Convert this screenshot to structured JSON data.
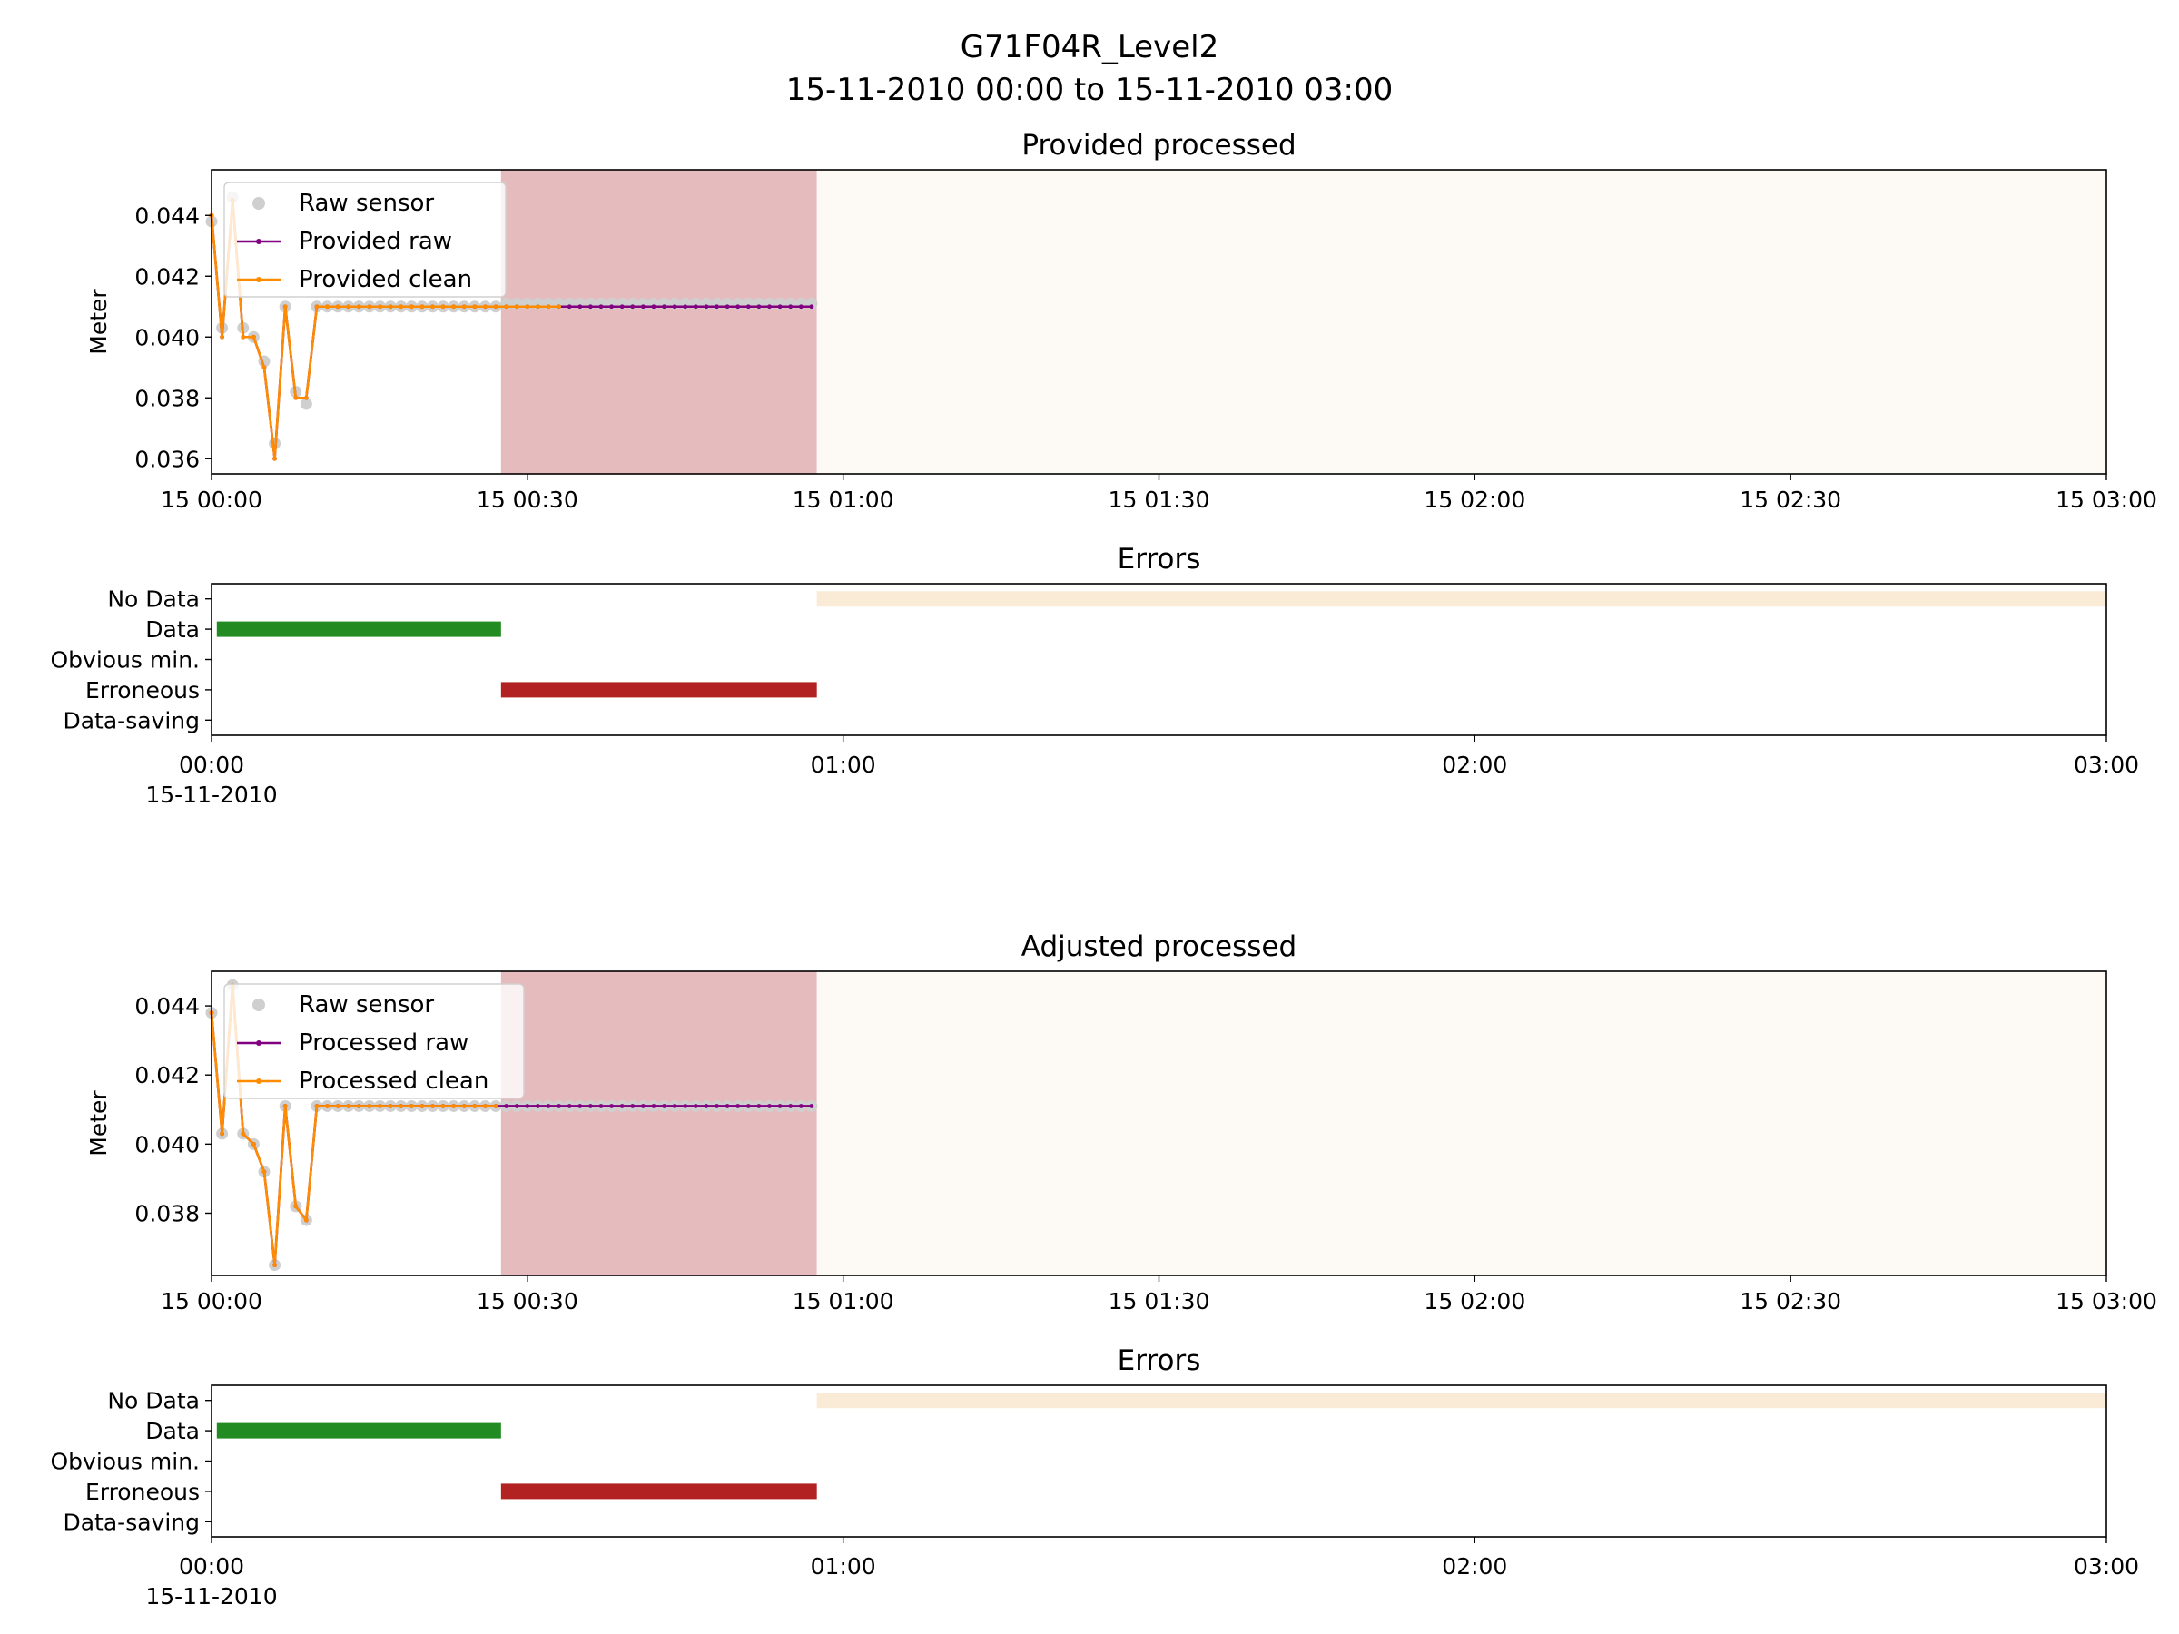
{
  "figure": {
    "title": "G71F04R_Level2",
    "subtitle": "15-11-2010 00:00 to 15-11-2010 03:00"
  },
  "colors": {
    "raw_sensor": "#cfcfcf",
    "raw_line": "#800080",
    "clean_line": "#ff8c00",
    "erroneous_span": "#e6bbbd",
    "nodata_span": "#fdf9f4",
    "data_bar": "#228b22",
    "erroneous_bar": "#b22222",
    "nodata_bar": "#faebd7"
  },
  "chart_data": [
    {
      "type": "line",
      "title": "Provided processed",
      "ylabel": "Meter",
      "xlim": [
        "2010-11-15 00:00",
        "2010-11-15 03:00"
      ],
      "ylim": [
        0.0355,
        0.0455
      ],
      "yticks": [
        "0.036",
        "0.038",
        "0.040",
        "0.042",
        "0.044"
      ],
      "xticks": [
        "15 00:00",
        "15 00:30",
        "15 01:00",
        "15 01:30",
        "15 02:00",
        "15 02:30",
        "15 03:00"
      ],
      "legend": {
        "position": "upper-left",
        "entries": [
          "Raw sensor",
          "Provided raw",
          "Provided clean"
        ]
      },
      "shaded_spans": [
        {
          "kind": "erroneous",
          "from": "2010-11-15 00:27:30",
          "to": "2010-11-15 00:57:30"
        },
        {
          "kind": "no_data",
          "from": "2010-11-15 00:57:30",
          "to": "2010-11-15 03:00"
        }
      ],
      "series": [
        {
          "name": "Raw sensor",
          "style": "points",
          "x": [
            "00:00",
            "00:01",
            "00:02",
            "00:03",
            "00:04",
            "00:05",
            "00:06",
            "00:07",
            "00:08",
            "00:09",
            "00:10",
            "00:11",
            "00:12",
            "00:13",
            "00:14",
            "00:15",
            "00:16",
            "00:17",
            "00:18",
            "00:19",
            "00:20",
            "00:21",
            "00:22",
            "00:23",
            "00:24",
            "00:25",
            "00:26",
            "00:27",
            "00:28",
            "00:29",
            "00:30",
            "00:31",
            "00:32",
            "00:33",
            "00:34",
            "00:35",
            "00:36",
            "00:37",
            "00:38",
            "00:39",
            "00:40",
            "00:41",
            "00:42",
            "00:43",
            "00:44",
            "00:45",
            "00:46",
            "00:47",
            "00:48",
            "00:49",
            "00:50",
            "00:51",
            "00:52",
            "00:53",
            "00:54",
            "00:55",
            "00:56",
            "00:57"
          ],
          "y": [
            0.0438,
            0.0403,
            0.0446,
            0.0403,
            0.04,
            0.0392,
            0.0365,
            0.041,
            0.0382,
            0.0378,
            0.041,
            0.041,
            0.041,
            0.041,
            0.041,
            0.041,
            0.041,
            0.041,
            0.041,
            0.041,
            0.041,
            0.041,
            0.041,
            0.041,
            0.041,
            0.041,
            0.041,
            0.041,
            0.0411,
            0.0411,
            0.0411,
            0.0411,
            0.0411,
            0.0411,
            0.0411,
            0.0411,
            0.0411,
            0.0411,
            0.0411,
            0.0411,
            0.0411,
            0.0411,
            0.0411,
            0.0411,
            0.0411,
            0.0411,
            0.0411,
            0.0411,
            0.0411,
            0.0411,
            0.0411,
            0.0411,
            0.0411,
            0.0411,
            0.0411,
            0.0411,
            0.0411,
            0.0411
          ]
        },
        {
          "name": "Provided raw",
          "style": "line-dots",
          "x": [
            "00:00",
            "00:01",
            "00:02",
            "00:03",
            "00:04",
            "00:05",
            "00:06",
            "00:07",
            "00:08",
            "00:09",
            "00:10",
            "00:11",
            "00:12",
            "00:13",
            "00:14",
            "00:15",
            "00:16",
            "00:17",
            "00:18",
            "00:19",
            "00:20",
            "00:21",
            "00:22",
            "00:23",
            "00:24",
            "00:25",
            "00:26",
            "00:27",
            "00:28",
            "00:29",
            "00:30",
            "00:31",
            "00:32",
            "00:33",
            "00:34",
            "00:35",
            "00:36",
            "00:37",
            "00:38",
            "00:39",
            "00:40",
            "00:41",
            "00:42",
            "00:43",
            "00:44",
            "00:45",
            "00:46",
            "00:47",
            "00:48",
            "00:49",
            "00:50",
            "00:51",
            "00:52",
            "00:53",
            "00:54",
            "00:55",
            "00:56",
            "00:57"
          ],
          "y": [
            0.044,
            0.04,
            0.0445,
            0.04,
            0.04,
            0.039,
            0.036,
            0.041,
            0.038,
            0.038,
            0.041,
            0.041,
            0.041,
            0.041,
            0.041,
            0.041,
            0.041,
            0.041,
            0.041,
            0.041,
            0.041,
            0.041,
            0.041,
            0.041,
            0.041,
            0.041,
            0.041,
            0.041,
            0.041,
            0.041,
            0.041,
            0.041,
            0.041,
            0.041,
            0.041,
            0.041,
            0.041,
            0.041,
            0.041,
            0.041,
            0.041,
            0.041,
            0.041,
            0.041,
            0.041,
            0.041,
            0.041,
            0.041,
            0.041,
            0.041,
            0.041,
            0.041,
            0.041,
            0.041,
            0.041,
            0.041,
            0.041,
            0.041
          ]
        },
        {
          "name": "Provided clean",
          "style": "line-dots",
          "x": [
            "00:00",
            "00:01",
            "00:02",
            "00:03",
            "00:04",
            "00:05",
            "00:06",
            "00:07",
            "00:08",
            "00:09",
            "00:10",
            "00:11",
            "00:12",
            "00:13",
            "00:14",
            "00:15",
            "00:16",
            "00:17",
            "00:18",
            "00:19",
            "00:20",
            "00:21",
            "00:22",
            "00:23",
            "00:24",
            "00:25",
            "00:26",
            "00:27",
            "00:28",
            "00:29",
            "00:30",
            "00:31",
            "00:32",
            "00:33"
          ],
          "y": [
            0.044,
            0.04,
            0.0445,
            0.04,
            0.04,
            0.039,
            0.036,
            0.041,
            0.038,
            0.038,
            0.041,
            0.041,
            0.041,
            0.041,
            0.041,
            0.041,
            0.041,
            0.041,
            0.041,
            0.041,
            0.041,
            0.041,
            0.041,
            0.041,
            0.041,
            0.041,
            0.041,
            0.041,
            0.041,
            0.041,
            0.041,
            0.041,
            0.041,
            0.041
          ]
        }
      ]
    },
    {
      "type": "bar",
      "title": "Errors",
      "xlim": [
        "2010-11-15 00:00",
        "2010-11-15 03:00"
      ],
      "xticks": [
        {
          "label": "00:00",
          "sub": "15-11-2010"
        },
        {
          "label": "01:00",
          "sub": ""
        },
        {
          "label": "02:00",
          "sub": ""
        },
        {
          "label": "03:00",
          "sub": ""
        }
      ],
      "categories": [
        "No Data",
        "Data",
        "Obvious min.",
        "Erroneous",
        "Data-saving"
      ],
      "spans": [
        {
          "category": "No Data",
          "from": "00:57:30",
          "to": "03:00",
          "color": "nodata_bar"
        },
        {
          "category": "Data",
          "from": "00:00:30",
          "to": "00:27:30",
          "color": "data_bar"
        },
        {
          "category": "Erroneous",
          "from": "00:27:30",
          "to": "00:57:30",
          "color": "erroneous_bar"
        }
      ]
    },
    {
      "type": "line",
      "title": "Adjusted processed",
      "ylabel": "Meter",
      "xlim": [
        "2010-11-15 00:00",
        "2010-11-15 03:00"
      ],
      "ylim": [
        0.0362,
        0.045
      ],
      "yticks": [
        "0.038",
        "0.040",
        "0.042",
        "0.044"
      ],
      "xticks": [
        "15 00:00",
        "15 00:30",
        "15 01:00",
        "15 01:30",
        "15 02:00",
        "15 02:30",
        "15 03:00"
      ],
      "legend": {
        "position": "upper-left",
        "entries": [
          "Raw sensor",
          "Processed raw",
          "Processed clean"
        ]
      },
      "shaded_spans": [
        {
          "kind": "erroneous",
          "from": "2010-11-15 00:27:30",
          "to": "2010-11-15 00:57:30"
        },
        {
          "kind": "no_data",
          "from": "2010-11-15 00:57:30",
          "to": "2010-11-15 03:00"
        }
      ],
      "series": [
        {
          "name": "Raw sensor",
          "style": "points",
          "x": [
            "00:00",
            "00:01",
            "00:02",
            "00:03",
            "00:04",
            "00:05",
            "00:06",
            "00:07",
            "00:08",
            "00:09",
            "00:10",
            "00:11",
            "00:12",
            "00:13",
            "00:14",
            "00:15",
            "00:16",
            "00:17",
            "00:18",
            "00:19",
            "00:20",
            "00:21",
            "00:22",
            "00:23",
            "00:24",
            "00:25",
            "00:26",
            "00:27",
            "00:28",
            "00:29",
            "00:30",
            "00:31",
            "00:32",
            "00:33",
            "00:34",
            "00:35",
            "00:36",
            "00:37",
            "00:38",
            "00:39",
            "00:40",
            "00:41",
            "00:42",
            "00:43",
            "00:44",
            "00:45",
            "00:46",
            "00:47",
            "00:48",
            "00:49",
            "00:50",
            "00:51",
            "00:52",
            "00:53",
            "00:54",
            "00:55",
            "00:56",
            "00:57"
          ],
          "y": [
            0.0438,
            0.0403,
            0.0446,
            0.0403,
            0.04,
            0.0392,
            0.0365,
            0.0411,
            0.0382,
            0.0378,
            0.0411,
            0.0411,
            0.0411,
            0.0411,
            0.0411,
            0.0411,
            0.0411,
            0.0411,
            0.0411,
            0.0411,
            0.0411,
            0.0411,
            0.0411,
            0.0411,
            0.0411,
            0.0411,
            0.0411,
            0.0411,
            0.0411,
            0.0411,
            0.0411,
            0.0411,
            0.0411,
            0.0411,
            0.0411,
            0.0411,
            0.0411,
            0.0411,
            0.0411,
            0.0411,
            0.0411,
            0.0411,
            0.0411,
            0.0411,
            0.0411,
            0.0411,
            0.0411,
            0.0411,
            0.0411,
            0.0411,
            0.0411,
            0.0411,
            0.0411,
            0.0411,
            0.0411,
            0.0411,
            0.0411,
            0.0411
          ]
        },
        {
          "name": "Processed raw",
          "style": "line-dots",
          "x": [
            "00:00",
            "00:01",
            "00:02",
            "00:03",
            "00:04",
            "00:05",
            "00:06",
            "00:07",
            "00:08",
            "00:09",
            "00:10",
            "00:11",
            "00:12",
            "00:13",
            "00:14",
            "00:15",
            "00:16",
            "00:17",
            "00:18",
            "00:19",
            "00:20",
            "00:21",
            "00:22",
            "00:23",
            "00:24",
            "00:25",
            "00:26",
            "00:27",
            "00:28",
            "00:29",
            "00:30",
            "00:31",
            "00:32",
            "00:33",
            "00:34",
            "00:35",
            "00:36",
            "00:37",
            "00:38",
            "00:39",
            "00:40",
            "00:41",
            "00:42",
            "00:43",
            "00:44",
            "00:45",
            "00:46",
            "00:47",
            "00:48",
            "00:49",
            "00:50",
            "00:51",
            "00:52",
            "00:53",
            "00:54",
            "00:55",
            "00:56",
            "00:57"
          ],
          "y": [
            0.0438,
            0.0403,
            0.0446,
            0.0403,
            0.04,
            0.0392,
            0.0365,
            0.0411,
            0.0382,
            0.0378,
            0.0411,
            0.0411,
            0.0411,
            0.0411,
            0.0411,
            0.0411,
            0.0411,
            0.0411,
            0.0411,
            0.0411,
            0.0411,
            0.0411,
            0.0411,
            0.0411,
            0.0411,
            0.0411,
            0.0411,
            0.0411,
            0.0411,
            0.0411,
            0.0411,
            0.0411,
            0.0411,
            0.0411,
            0.0411,
            0.0411,
            0.0411,
            0.0411,
            0.0411,
            0.0411,
            0.0411,
            0.0411,
            0.0411,
            0.0411,
            0.0411,
            0.0411,
            0.0411,
            0.0411,
            0.0411,
            0.0411,
            0.0411,
            0.0411,
            0.0411,
            0.0411,
            0.0411,
            0.0411,
            0.0411,
            0.0411
          ]
        },
        {
          "name": "Processed clean",
          "style": "line-dots",
          "x": [
            "00:00",
            "00:01",
            "00:02",
            "00:03",
            "00:04",
            "00:05",
            "00:06",
            "00:07",
            "00:08",
            "00:09",
            "00:10",
            "00:11",
            "00:12",
            "00:13",
            "00:14",
            "00:15",
            "00:16",
            "00:17",
            "00:18",
            "00:19",
            "00:20",
            "00:21",
            "00:22",
            "00:23",
            "00:24",
            "00:25",
            "00:26",
            "00:27"
          ],
          "y": [
            0.0438,
            0.0403,
            0.0446,
            0.0403,
            0.04,
            0.0392,
            0.0365,
            0.0411,
            0.0382,
            0.0378,
            0.0411,
            0.0411,
            0.0411,
            0.0411,
            0.0411,
            0.0411,
            0.0411,
            0.0411,
            0.0411,
            0.0411,
            0.0411,
            0.0411,
            0.0411,
            0.0411,
            0.0411,
            0.0411,
            0.0411,
            0.0411
          ]
        }
      ]
    },
    {
      "type": "bar",
      "title": "Errors",
      "xlim": [
        "2010-11-15 00:00",
        "2010-11-15 03:00"
      ],
      "xticks": [
        {
          "label": "00:00",
          "sub": "15-11-2010"
        },
        {
          "label": "01:00",
          "sub": ""
        },
        {
          "label": "02:00",
          "sub": ""
        },
        {
          "label": "03:00",
          "sub": ""
        }
      ],
      "categories": [
        "No Data",
        "Data",
        "Obvious min.",
        "Erroneous",
        "Data-saving"
      ],
      "spans": [
        {
          "category": "No Data",
          "from": "00:57:30",
          "to": "03:00",
          "color": "nodata_bar"
        },
        {
          "category": "Data",
          "from": "00:00:30",
          "to": "00:27:30",
          "color": "data_bar"
        },
        {
          "category": "Erroneous",
          "from": "00:27:30",
          "to": "00:57:30",
          "color": "erroneous_bar"
        }
      ]
    }
  ]
}
